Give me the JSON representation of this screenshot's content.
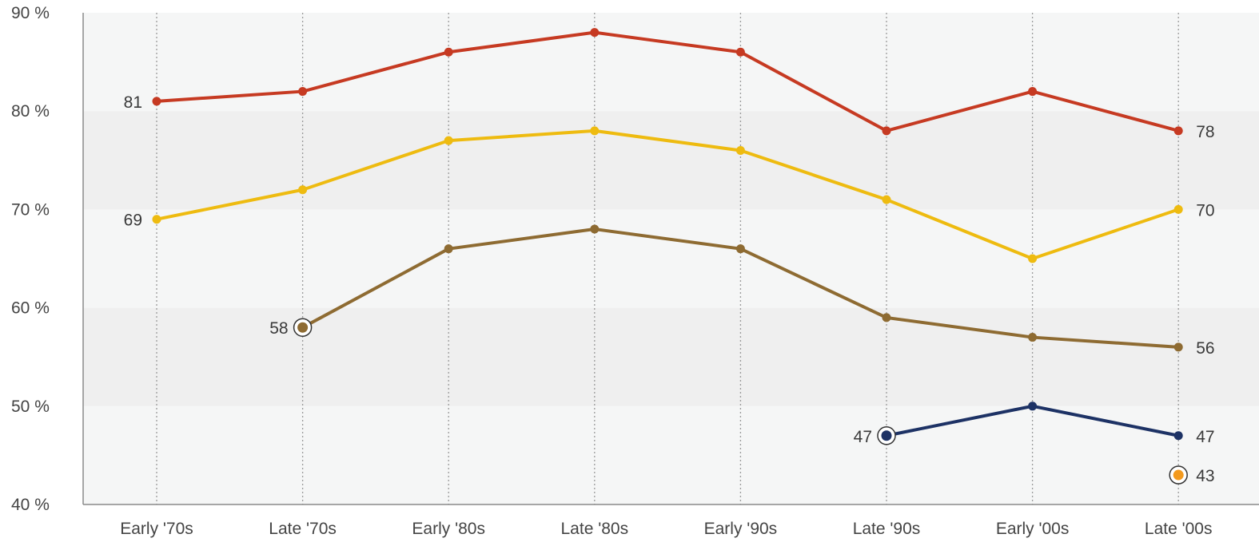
{
  "chart_data": {
    "type": "line",
    "title": "",
    "xlabel": "",
    "ylabel": "",
    "categories": [
      "Early '70s",
      "Late '70s",
      "Early '80s",
      "Late '80s",
      "Early '90s",
      "Late '90s",
      "Early '00s",
      "Late '00s"
    ],
    "y_ticks": [
      "40 %",
      "50 %",
      "60 %",
      "70 %",
      "80 %",
      "90 %"
    ],
    "ylim": [
      40,
      90
    ],
    "grid": "vertical dotted lines at each category; alternating horizontal bands",
    "legend": "none",
    "series": [
      {
        "color": "#c63a22",
        "values": [
          81,
          82,
          86,
          88,
          86,
          78,
          82,
          78
        ],
        "labels": [
          {
            "index": 0,
            "text": "81",
            "side": "left"
          },
          {
            "index": 7,
            "text": "78",
            "side": "right"
          }
        ]
      },
      {
        "color": "#eebb10",
        "values": [
          69,
          72,
          77,
          78,
          76,
          71,
          65,
          70
        ],
        "labels": [
          {
            "index": 0,
            "text": "69",
            "side": "left"
          },
          {
            "index": 7,
            "text": "70",
            "side": "right"
          }
        ]
      },
      {
        "color": "#8e6b32",
        "values": [
          null,
          58,
          66,
          68,
          66,
          59,
          57,
          56
        ],
        "start_marker": "ring",
        "labels": [
          {
            "index": 1,
            "text": "58",
            "side": "left"
          },
          {
            "index": 7,
            "text": "56",
            "side": "right"
          }
        ]
      },
      {
        "color": "#1d3265",
        "values": [
          null,
          null,
          null,
          null,
          null,
          47,
          50,
          47
        ],
        "start_marker": "ring",
        "labels": [
          {
            "index": 5,
            "text": "47",
            "side": "left"
          },
          {
            "index": 7,
            "text": "47",
            "side": "right"
          }
        ]
      },
      {
        "color": "#f39a1e",
        "values": [
          null,
          null,
          null,
          null,
          null,
          null,
          null,
          43
        ],
        "start_marker": "ring",
        "labels": [
          {
            "index": 7,
            "text": "43",
            "side": "right"
          }
        ]
      }
    ]
  }
}
